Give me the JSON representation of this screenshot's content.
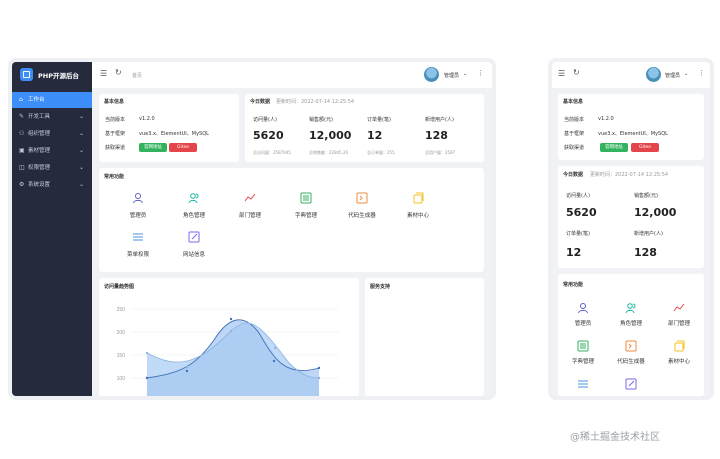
{
  "app": {
    "title": "PHP开源后台"
  },
  "sidebar": {
    "items": [
      {
        "label": "工作台"
      },
      {
        "label": "开发工具"
      },
      {
        "label": "组织管理"
      },
      {
        "label": "素材管理"
      },
      {
        "label": "权限管理"
      },
      {
        "label": "系统设置"
      }
    ]
  },
  "header": {
    "breadcrumb": "首页",
    "user": "管理员"
  },
  "basic_info": {
    "title": "基本信息",
    "rows": [
      {
        "label": "当前版本",
        "value": "v1.2.0"
      },
      {
        "label": "基于框架",
        "value": "vue3.x、ElementUI、MySQL"
      },
      {
        "label": "获取渠道",
        "value": ""
      }
    ],
    "tags": [
      {
        "label": "官网地址",
        "color": "#34b35f"
      },
      {
        "label": "Gitee",
        "color": "#e4454b"
      }
    ]
  },
  "today": {
    "title": "今日数据",
    "update_time": "更新时间：2022-07-14 12:25:54",
    "stats": [
      {
        "label": "访问量(人)",
        "value": "5620",
        "sub": "总访问量：2587945"
      },
      {
        "label": "销售额(元)",
        "value": "12,000",
        "sub": "总销售额：22845.20"
      },
      {
        "label": "订单量(笔)",
        "value": "12",
        "sub": "总订单量：255"
      },
      {
        "label": "新增用户(人)",
        "value": "128",
        "sub": "总用户量：2587"
      }
    ]
  },
  "functions": {
    "title": "常用功能",
    "items": [
      {
        "label": "管理员",
        "icon": "user-icon",
        "color": "#5b5fc7"
      },
      {
        "label": "角色管理",
        "icon": "users-icon",
        "color": "#17b7a4"
      },
      {
        "label": "部门管理",
        "icon": "chart-line-icon",
        "color": "#e4454b"
      },
      {
        "label": "字典管理",
        "icon": "dictionary-icon",
        "color": "#34b35f"
      },
      {
        "label": "代码生成器",
        "icon": "code-icon",
        "color": "#f08a3a"
      },
      {
        "label": "素材中心",
        "icon": "folder-icon",
        "color": "#f5c223"
      },
      {
        "label": "菜单权限",
        "icon": "menu-icon",
        "color": "#4a90e2"
      },
      {
        "label": "网站信息",
        "icon": "edit-icon",
        "color": "#7b68ee"
      }
    ]
  },
  "trend": {
    "title": "访问量趋势图",
    "yticks": [
      "250",
      "200",
      "150",
      "100"
    ]
  },
  "support": {
    "title": "服务支持"
  },
  "mobile": {
    "functions": [
      {
        "label": "管理员"
      },
      {
        "label": "角色管理"
      },
      {
        "label": "部门管理"
      },
      {
        "label": "字典管理"
      },
      {
        "label": "代码生成器"
      },
      {
        "label": "素材中心"
      }
    ]
  },
  "watermark": "@稀土掘金技术社区"
}
